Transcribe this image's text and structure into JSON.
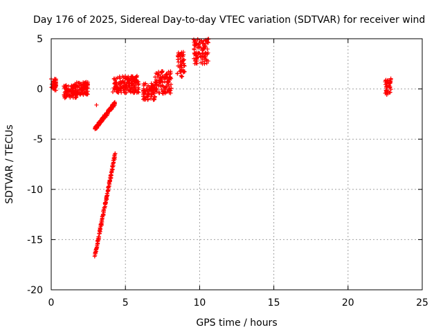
{
  "chart_data": {
    "type": "scatter",
    "title": "Day 176 of 2025, Sidereal Day-to-day VTEC variation (SDTVAR) for receiver wind",
    "xlabel": "GPS time / hours",
    "ylabel": "SDTVAR / TECUs",
    "xlim": [
      0,
      25
    ],
    "ylim": [
      -20,
      5
    ],
    "xticks": [
      0,
      5,
      10,
      15,
      20,
      25
    ],
    "yticks": [
      -20,
      -15,
      -10,
      -5,
      0,
      5
    ],
    "grid": true,
    "marker": "+",
    "color": "#ff0000",
    "clusters": [
      {
        "x": [
          0.0,
          0.35
        ],
        "y": [
          -0.2,
          1.1
        ]
      },
      {
        "x": [
          0.85,
          1.7
        ],
        "y": [
          -0.9,
          0.4
        ]
      },
      {
        "x": [
          1.6,
          2.5
        ],
        "y": [
          -0.6,
          0.7
        ]
      },
      {
        "x": [
          4.2,
          5.9
        ],
        "y": [
          -0.4,
          1.3
        ]
      },
      {
        "x": [
          6.2,
          7.0
        ],
        "y": [
          -1.1,
          0.6
        ]
      },
      {
        "x": [
          7.0,
          8.1
        ],
        "y": [
          -0.5,
          1.8
        ]
      },
      {
        "x": [
          8.5,
          9.0
        ],
        "y": [
          1.2,
          3.7
        ]
      },
      {
        "x": [
          9.6,
          10.6
        ],
        "y": [
          2.5,
          5.0
        ]
      },
      {
        "x": [
          22.5,
          22.9
        ],
        "y": [
          -0.6,
          1.1
        ]
      }
    ],
    "trends": [
      {
        "x": [
          2.95,
          4.3
        ],
        "y": [
          -4.0,
          -1.4
        ]
      },
      {
        "x": [
          2.95,
          4.3
        ],
        "y": [
          -16.6,
          -6.5
        ]
      }
    ],
    "points": [
      {
        "x": 3.05,
        "y": -1.6
      },
      {
        "x": 4.15,
        "y": -0.3
      }
    ]
  }
}
